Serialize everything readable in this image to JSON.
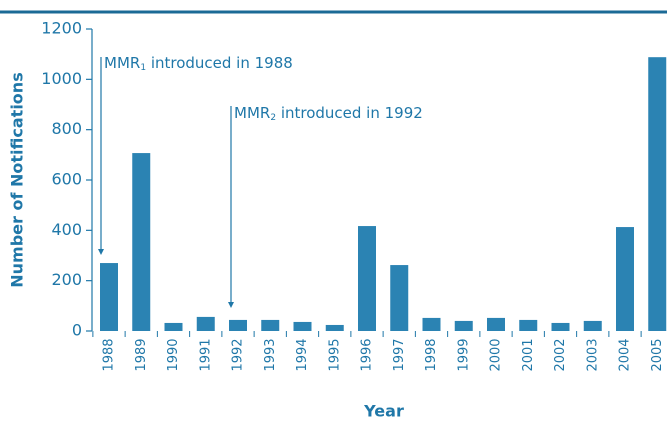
{
  "chart_data": {
    "type": "bar",
    "categories": [
      "1988",
      "1989",
      "1990",
      "1991",
      "1992",
      "1993",
      "1994",
      "1995",
      "1996",
      "1997",
      "1998",
      "1999",
      "2000",
      "2001",
      "2002",
      "2003",
      "2004",
      "2005"
    ],
    "values": [
      270,
      707,
      32,
      56,
      44,
      44,
      36,
      24,
      417,
      262,
      52,
      40,
      52,
      44,
      32,
      40,
      413,
      1088
    ],
    "color": "#2b83b3",
    "ylim": [
      0,
      1200
    ],
    "yticks": [
      0,
      200,
      400,
      600,
      800,
      1000,
      1200
    ],
    "ylabel": "Number of Notifications",
    "xlabel": "Year",
    "annotations": [
      {
        "parts": [
          "MMR",
          "1",
          " introduced in 1988"
        ]
      },
      {
        "parts": [
          "MMR",
          "2",
          " introduced in 1992"
        ]
      }
    ]
  }
}
